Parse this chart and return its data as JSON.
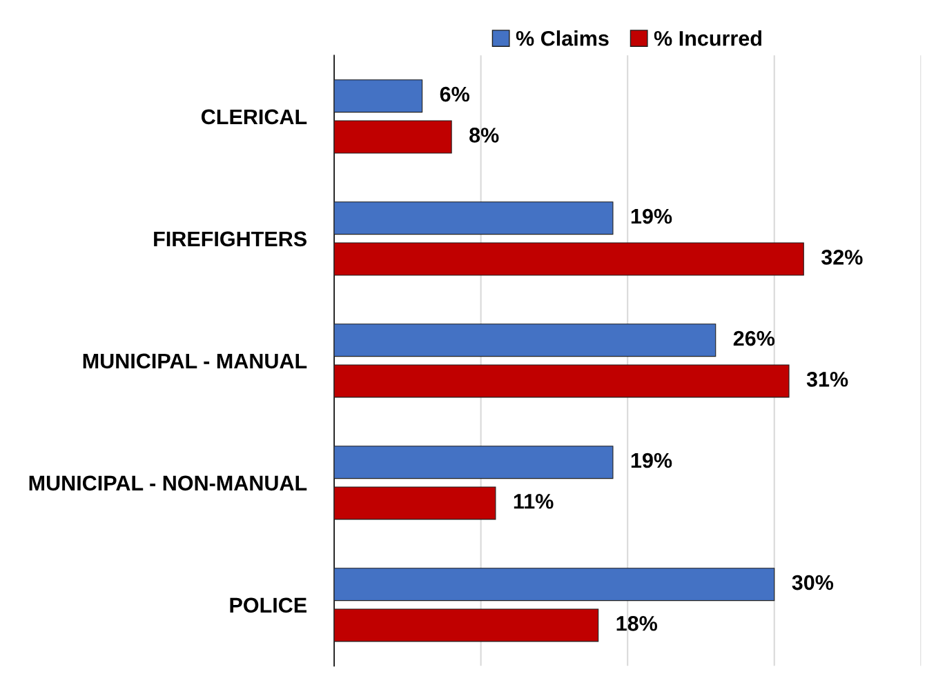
{
  "chart_data": {
    "type": "bar",
    "orientation": "horizontal",
    "categories": [
      "CLERICAL",
      "FIREFIGHTERS",
      "MUNICIPAL - MANUAL",
      "MUNICIPAL - NON-MANUAL",
      "POLICE"
    ],
    "series": [
      {
        "name": "% Claims",
        "color": "#4472c4",
        "values": [
          6,
          19,
          26,
          19,
          30
        ],
        "value_labels": [
          "6%",
          "19%",
          "26%",
          "19%",
          "30%"
        ]
      },
      {
        "name": "% Incurred",
        "color": "#c00000",
        "values": [
          8,
          32,
          31,
          11,
          18
        ],
        "value_labels": [
          "8%",
          "32%",
          "31%",
          "11%",
          "18%"
        ]
      }
    ],
    "xlim": [
      0,
      40
    ],
    "xticks": [
      {
        "value": 0,
        "label": null
      },
      {
        "value": 10,
        "label": null
      },
      {
        "value": 20,
        "label": null
      },
      {
        "value": 30,
        "label": null
      },
      {
        "value": 40,
        "label": null
      }
    ],
    "tick_labels": "y",
    "grid": "x",
    "legend": "top"
  }
}
